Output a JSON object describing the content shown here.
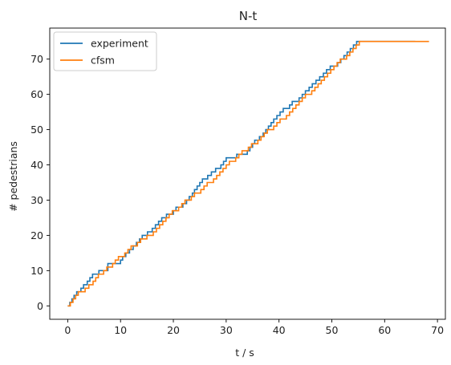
{
  "chart_data": {
    "type": "line",
    "step": "post",
    "title": "N-t",
    "xlabel": "t / s",
    "ylabel": "# pedestrians",
    "xlim": [
      -3.4,
      71.5
    ],
    "ylim": [
      -3.8,
      78.8
    ],
    "xticks": [
      0,
      10,
      20,
      30,
      40,
      50,
      60,
      70
    ],
    "yticks": [
      0,
      10,
      20,
      30,
      40,
      50,
      60,
      70
    ],
    "grid": false,
    "legend": "upper-left",
    "series": [
      {
        "name": "experiment",
        "color": "#1f77b4",
        "x": [
          0,
          0.4,
          0.8,
          1.2,
          1.7,
          2.1,
          2.5,
          3.0,
          3.7,
          4.2,
          4.7,
          5.3,
          5.9,
          7.6,
          8.4,
          10.0,
          10.4,
          11.0,
          11.7,
          12.4,
          13.0,
          13.6,
          14.1,
          14.6,
          15.1,
          16.0,
          16.6,
          17.2,
          17.8,
          18.3,
          18.7,
          20.0,
          20.5,
          20.9,
          21.8,
          22.5,
          23.0,
          23.6,
          24.0,
          24.5,
          25.0,
          25.5,
          26.0,
          26.5,
          27.2,
          28.0,
          29.0,
          29.5,
          30.0,
          30.5,
          31.0,
          31.5,
          32.0,
          34.0,
          34.5,
          35.0,
          35.4,
          35.8,
          36.3,
          37.0,
          37.5,
          38.0,
          38.5,
          39.0,
          39.6,
          40.2,
          40.8,
          41.5,
          42.0,
          42.5,
          43.2,
          43.8,
          44.4,
          45.0,
          45.7,
          46.3,
          47.0,
          47.7,
          48.4,
          49.0,
          49.7,
          50.4,
          51.1,
          51.7,
          52.3,
          52.9,
          53.5,
          54.1,
          54.7,
          55.3,
          55.9,
          56.5,
          57.1,
          57.7,
          58.3,
          58.9,
          59.5,
          60.1,
          60.7,
          61.3,
          61.9,
          62.5,
          63.2,
          63.9,
          64.6,
          65.0,
          65.8
        ],
        "y": [
          0,
          1,
          2,
          3,
          4,
          4,
          5,
          6,
          7,
          8,
          9,
          9,
          10,
          12,
          12,
          13,
          14,
          15,
          16,
          17,
          18,
          19,
          20,
          20,
          21,
          22,
          23,
          24,
          25,
          25,
          26,
          27,
          28,
          28,
          29,
          30,
          31,
          32,
          33,
          34,
          35,
          36,
          36,
          37,
          38,
          39,
          40,
          41,
          42,
          42,
          42,
          42,
          43,
          44,
          45,
          46,
          47,
          47,
          48,
          49,
          50,
          51,
          52,
          53,
          54,
          55,
          56,
          56,
          57,
          58,
          58,
          59,
          60,
          61,
          62,
          63,
          64,
          65,
          66,
          67,
          68,
          68,
          69,
          70,
          71,
          72,
          73,
          74,
          75,
          75,
          75,
          75,
          75,
          75,
          75,
          75,
          75,
          75,
          75,
          75,
          75,
          75,
          75,
          75,
          75,
          75,
          75
        ]
      },
      {
        "name": "cfsm",
        "color": "#ff7f0e",
        "x": [
          0,
          0.5,
          1.0,
          1.5,
          2.0,
          2.6,
          3.3,
          4.0,
          4.8,
          5.3,
          5.8,
          6.3,
          6.8,
          7.4,
          8.0,
          8.5,
          9.0,
          9.6,
          10.2,
          10.8,
          11.4,
          12.0,
          12.6,
          13.2,
          13.8,
          14.4,
          15.0,
          15.6,
          16.2,
          16.8,
          17.4,
          18.0,
          18.6,
          19.2,
          19.8,
          20.4,
          21.0,
          21.6,
          22.2,
          22.8,
          23.4,
          24.0,
          24.6,
          25.2,
          25.8,
          26.4,
          27.0,
          27.6,
          28.2,
          28.8,
          29.4,
          30.0,
          30.6,
          31.2,
          31.8,
          32.4,
          33.0,
          33.6,
          34.2,
          34.8,
          35.4,
          36.0,
          36.6,
          37.2,
          37.8,
          38.4,
          39.0,
          39.6,
          40.2,
          40.8,
          41.4,
          42.0,
          42.6,
          43.2,
          43.8,
          44.4,
          45.0,
          45.6,
          46.2,
          46.8,
          47.4,
          48.0,
          48.6,
          49.2,
          49.8,
          50.4,
          51.0,
          51.6,
          52.2,
          52.8,
          53.4,
          54.0,
          54.6,
          55.2,
          55.8,
          56.4,
          57.0,
          57.6,
          58.2,
          58.8,
          59.4,
          60.0,
          60.6,
          61.2,
          61.8,
          62.4,
          63.0,
          63.6,
          64.2,
          64.8,
          65.4,
          66.0,
          66.6,
          67.2,
          67.8,
          68.4
        ],
        "y": [
          0,
          1,
          2,
          3,
          4,
          4,
          5,
          6,
          7,
          8,
          9,
          9,
          10,
          11,
          11,
          12,
          13,
          14,
          14,
          15,
          16,
          17,
          17,
          18,
          19,
          19,
          20,
          20,
          21,
          22,
          23,
          24,
          25,
          26,
          27,
          27,
          28,
          29,
          30,
          30,
          31,
          32,
          32,
          33,
          34,
          35,
          35,
          36,
          37,
          38,
          39,
          40,
          41,
          41,
          42,
          43,
          44,
          44,
          45,
          46,
          46,
          47,
          48,
          49,
          50,
          50,
          51,
          52,
          53,
          53,
          54,
          55,
          56,
          57,
          58,
          59,
          60,
          60,
          61,
          62,
          63,
          64,
          65,
          66,
          67,
          68,
          69,
          70,
          70,
          71,
          72,
          73,
          74,
          75,
          75,
          75,
          75,
          75,
          75,
          75,
          75,
          75,
          75,
          75,
          75,
          75,
          75,
          75,
          75,
          75,
          75,
          75,
          75,
          75,
          75,
          75
        ]
      }
    ]
  }
}
